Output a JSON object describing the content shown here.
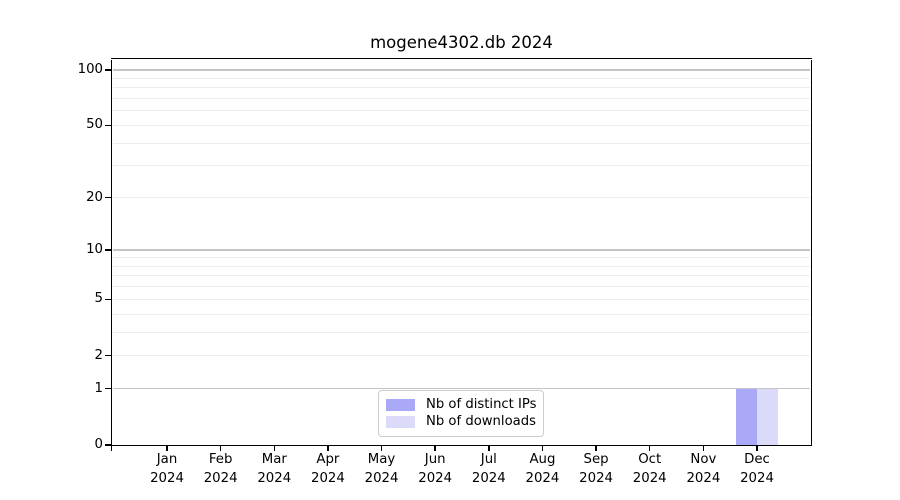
{
  "chart_data": {
    "type": "bar",
    "title": "mogene4302.db 2024",
    "categories": [
      "Jan 2024",
      "Feb 2024",
      "Mar 2024",
      "Apr 2024",
      "May 2024",
      "Jun 2024",
      "Jul 2024",
      "Aug 2024",
      "Sep 2024",
      "Oct 2024",
      "Nov 2024",
      "Dec 2024"
    ],
    "series": [
      {
        "name": "Nb of distinct IPs",
        "color": "#a9a9f7",
        "values": [
          0,
          0,
          0,
          0,
          0,
          0,
          0,
          0,
          0,
          0,
          0,
          1
        ]
      },
      {
        "name": "Nb of downloads",
        "color": "#dbdbf9",
        "values": [
          0,
          0,
          0,
          0,
          0,
          0,
          0,
          0,
          0,
          0,
          0,
          1
        ]
      }
    ],
    "yscale": "log1p",
    "ylim": [
      0,
      113
    ],
    "yticks": [
      0,
      1,
      2,
      5,
      10,
      20,
      50,
      100
    ],
    "gridlines_major": [
      1,
      10,
      100
    ],
    "gridlines_minor": [
      2,
      3,
      4,
      5,
      6,
      7,
      8,
      9,
      20,
      30,
      40,
      50,
      60,
      70,
      80,
      90
    ],
    "grid": true,
    "legend_position": "lower center inside",
    "colors": {
      "background": "#ffffff",
      "spine": "#000000",
      "grid_major": "#c4c4c4",
      "grid_minor": "#ececec",
      "text": "#000000",
      "legend_border": "#cccccc"
    }
  }
}
